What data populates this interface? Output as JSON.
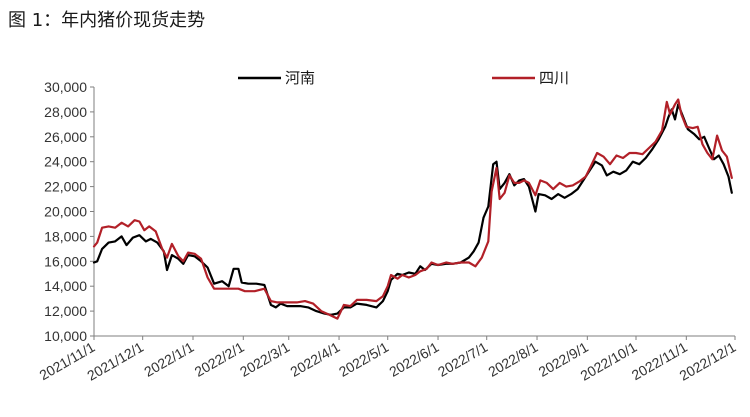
{
  "figure_title": "图 1：年内猪价现货走势",
  "chart_data": {
    "type": "line",
    "title": "图 1：年内猪价现货走势",
    "xlabel": "",
    "ylabel": "",
    "ylim": [
      10000,
      30000
    ],
    "yticks": [
      "10,000",
      "12,000",
      "14,000",
      "16,000",
      "18,000",
      "20,000",
      "22,000",
      "24,000",
      "26,000",
      "28,000",
      "30,000"
    ],
    "xlim": [
      "2021-11-01",
      "2022-12-01"
    ],
    "xticks": [
      "2021/11/1",
      "2021/12/1",
      "2022/1/1",
      "2022/2/1",
      "2022/3/1",
      "2022/4/1",
      "2022/5/1",
      "2022/6/1",
      "2022/7/1",
      "2022/8/1",
      "2022/9/1",
      "2022/10/1",
      "2022/11/1",
      "2022/12/1"
    ],
    "grid": false,
    "legend_position": "top",
    "series": [
      {
        "name": "河南",
        "color": "#000000",
        "points": [
          [
            "2021-11-01",
            15900
          ],
          [
            "2021-11-03",
            16000
          ],
          [
            "2021-11-06",
            17000
          ],
          [
            "2021-11-10",
            17500
          ],
          [
            "2021-11-14",
            17600
          ],
          [
            "2021-11-18",
            18000
          ],
          [
            "2021-11-21",
            17300
          ],
          [
            "2021-11-25",
            17900
          ],
          [
            "2021-11-29",
            18100
          ],
          [
            "2021-12-03",
            17600
          ],
          [
            "2021-12-06",
            17800
          ],
          [
            "2021-12-10",
            17500
          ],
          [
            "2021-12-14",
            16800
          ],
          [
            "2021-12-16",
            15300
          ],
          [
            "2021-12-19",
            16500
          ],
          [
            "2021-12-23",
            16200
          ],
          [
            "2021-12-26",
            15800
          ],
          [
            "2021-12-29",
            16500
          ],
          [
            "2022-01-02",
            16400
          ],
          [
            "2022-01-06",
            16000
          ],
          [
            "2022-01-10",
            15500
          ],
          [
            "2022-01-14",
            14200
          ],
          [
            "2022-01-19",
            14400
          ],
          [
            "2022-01-23",
            14000
          ],
          [
            "2022-01-26",
            15400
          ],
          [
            "2022-01-29",
            15400
          ],
          [
            "2022-01-31",
            14300
          ],
          [
            "2022-02-04",
            14200
          ],
          [
            "2022-02-09",
            14200
          ],
          [
            "2022-02-14",
            14100
          ],
          [
            "2022-02-18",
            12500
          ],
          [
            "2022-02-21",
            12300
          ],
          [
            "2022-02-24",
            12600
          ],
          [
            "2022-02-28",
            12400
          ],
          [
            "2022-03-04",
            12400
          ],
          [
            "2022-03-08",
            12400
          ],
          [
            "2022-03-13",
            12300
          ],
          [
            "2022-03-18",
            12000
          ],
          [
            "2022-03-23",
            11800
          ],
          [
            "2022-03-27",
            11700
          ],
          [
            "2022-03-31",
            11800
          ],
          [
            "2022-04-04",
            12300
          ],
          [
            "2022-04-08",
            12300
          ],
          [
            "2022-04-12",
            12600
          ],
          [
            "2022-04-18",
            12500
          ],
          [
            "2022-04-24",
            12300
          ],
          [
            "2022-04-28",
            12800
          ],
          [
            "2022-05-01",
            13600
          ],
          [
            "2022-05-03",
            14500
          ],
          [
            "2022-05-07",
            15000
          ],
          [
            "2022-05-10",
            14900
          ],
          [
            "2022-05-14",
            15100
          ],
          [
            "2022-05-18",
            15000
          ],
          [
            "2022-05-21",
            15600
          ],
          [
            "2022-05-24",
            15300
          ],
          [
            "2022-05-28",
            15800
          ],
          [
            "2022-06-01",
            15700
          ],
          [
            "2022-06-06",
            15800
          ],
          [
            "2022-06-10",
            15800
          ],
          [
            "2022-06-15",
            15900
          ],
          [
            "2022-06-20",
            16300
          ],
          [
            "2022-06-23",
            16800
          ],
          [
            "2022-06-26",
            17500
          ],
          [
            "2022-06-29",
            19500
          ],
          [
            "2022-07-02",
            20400
          ],
          [
            "2022-07-05",
            23800
          ],
          [
            "2022-07-07",
            24000
          ],
          [
            "2022-07-09",
            21800
          ],
          [
            "2022-07-12",
            22300
          ],
          [
            "2022-07-15",
            23000
          ],
          [
            "2022-07-18",
            22100
          ],
          [
            "2022-07-21",
            22500
          ],
          [
            "2022-07-24",
            22600
          ],
          [
            "2022-07-27",
            22000
          ],
          [
            "2022-07-31",
            20000
          ],
          [
            "2022-08-02",
            21400
          ],
          [
            "2022-08-06",
            21300
          ],
          [
            "2022-08-10",
            21000
          ],
          [
            "2022-08-14",
            21400
          ],
          [
            "2022-08-18",
            21100
          ],
          [
            "2022-08-22",
            21400
          ],
          [
            "2022-08-26",
            21800
          ],
          [
            "2022-08-30",
            22600
          ],
          [
            "2022-09-02",
            23200
          ],
          [
            "2022-09-06",
            24000
          ],
          [
            "2022-09-10",
            23700
          ],
          [
            "2022-09-13",
            22900
          ],
          [
            "2022-09-17",
            23200
          ],
          [
            "2022-09-21",
            23000
          ],
          [
            "2022-09-25",
            23300
          ],
          [
            "2022-09-29",
            24000
          ],
          [
            "2022-10-03",
            23800
          ],
          [
            "2022-10-07",
            24300
          ],
          [
            "2022-10-11",
            25000
          ],
          [
            "2022-10-15",
            25800
          ],
          [
            "2022-10-19",
            26800
          ],
          [
            "2022-10-21",
            27600
          ],
          [
            "2022-10-23",
            28200
          ],
          [
            "2022-10-25",
            27400
          ],
          [
            "2022-10-27",
            28600
          ],
          [
            "2022-10-30",
            27600
          ],
          [
            "2022-11-02",
            26600
          ],
          [
            "2022-11-06",
            26200
          ],
          [
            "2022-11-09",
            25800
          ],
          [
            "2022-11-12",
            26000
          ],
          [
            "2022-11-15",
            25100
          ],
          [
            "2022-11-18",
            24200
          ],
          [
            "2022-11-21",
            24500
          ],
          [
            "2022-11-24",
            23800
          ],
          [
            "2022-11-27",
            22800
          ],
          [
            "2022-11-29",
            21500
          ]
        ]
      },
      {
        "name": "四川",
        "color": "#b22028",
        "points": [
          [
            "2021-11-01",
            17200
          ],
          [
            "2021-11-03",
            17500
          ],
          [
            "2021-11-06",
            18700
          ],
          [
            "2021-11-10",
            18800
          ],
          [
            "2021-11-14",
            18700
          ],
          [
            "2021-11-18",
            19100
          ],
          [
            "2021-11-22",
            18800
          ],
          [
            "2021-11-26",
            19300
          ],
          [
            "2021-11-29",
            19200
          ],
          [
            "2021-12-02",
            18500
          ],
          [
            "2021-12-05",
            18800
          ],
          [
            "2021-12-09",
            18400
          ],
          [
            "2021-12-13",
            17000
          ],
          [
            "2021-12-16",
            16300
          ],
          [
            "2021-12-19",
            17400
          ],
          [
            "2021-12-23",
            16400
          ],
          [
            "2021-12-26",
            16000
          ],
          [
            "2021-12-29",
            16700
          ],
          [
            "2022-01-02",
            16600
          ],
          [
            "2022-01-06",
            16200
          ],
          [
            "2022-01-10",
            14700
          ],
          [
            "2022-01-14",
            13800
          ],
          [
            "2022-01-19",
            13800
          ],
          [
            "2022-01-24",
            13800
          ],
          [
            "2022-01-29",
            13800
          ],
          [
            "2022-02-02",
            13600
          ],
          [
            "2022-02-08",
            13600
          ],
          [
            "2022-02-14",
            13800
          ],
          [
            "2022-02-18",
            12800
          ],
          [
            "2022-02-22",
            12700
          ],
          [
            "2022-02-28",
            12700
          ],
          [
            "2022-03-06",
            12700
          ],
          [
            "2022-03-11",
            12800
          ],
          [
            "2022-03-16",
            12600
          ],
          [
            "2022-03-21",
            12000
          ],
          [
            "2022-03-26",
            11700
          ],
          [
            "2022-03-31",
            11400
          ],
          [
            "2022-04-04",
            12500
          ],
          [
            "2022-04-08",
            12400
          ],
          [
            "2022-04-12",
            12900
          ],
          [
            "2022-04-18",
            12900
          ],
          [
            "2022-04-24",
            12800
          ],
          [
            "2022-04-28",
            13200
          ],
          [
            "2022-05-01",
            14000
          ],
          [
            "2022-05-03",
            14900
          ],
          [
            "2022-05-07",
            14600
          ],
          [
            "2022-05-10",
            14900
          ],
          [
            "2022-05-14",
            14700
          ],
          [
            "2022-05-18",
            14900
          ],
          [
            "2022-05-21",
            15200
          ],
          [
            "2022-05-25",
            15400
          ],
          [
            "2022-05-28",
            15900
          ],
          [
            "2022-06-01",
            15700
          ],
          [
            "2022-06-06",
            15900
          ],
          [
            "2022-06-10",
            15800
          ],
          [
            "2022-06-15",
            15900
          ],
          [
            "2022-06-20",
            15900
          ],
          [
            "2022-06-24",
            15600
          ],
          [
            "2022-06-28",
            16300
          ],
          [
            "2022-07-02",
            17600
          ],
          [
            "2022-07-04",
            21600
          ],
          [
            "2022-07-07",
            23500
          ],
          [
            "2022-07-09",
            21000
          ],
          [
            "2022-07-12",
            21500
          ],
          [
            "2022-07-15",
            22900
          ],
          [
            "2022-07-18",
            22300
          ],
          [
            "2022-07-21",
            22300
          ],
          [
            "2022-07-24",
            22500
          ],
          [
            "2022-07-27",
            22300
          ],
          [
            "2022-07-31",
            21300
          ],
          [
            "2022-08-03",
            22500
          ],
          [
            "2022-08-07",
            22300
          ],
          [
            "2022-08-11",
            21800
          ],
          [
            "2022-08-15",
            22300
          ],
          [
            "2022-08-19",
            22000
          ],
          [
            "2022-08-23",
            22100
          ],
          [
            "2022-08-27",
            22400
          ],
          [
            "2022-08-31",
            22800
          ],
          [
            "2022-09-03",
            23600
          ],
          [
            "2022-09-07",
            24700
          ],
          [
            "2022-09-11",
            24400
          ],
          [
            "2022-09-15",
            23800
          ],
          [
            "2022-09-19",
            24500
          ],
          [
            "2022-09-23",
            24300
          ],
          [
            "2022-09-27",
            24700
          ],
          [
            "2022-10-01",
            24700
          ],
          [
            "2022-10-05",
            24600
          ],
          [
            "2022-10-09",
            25100
          ],
          [
            "2022-10-13",
            25600
          ],
          [
            "2022-10-17",
            26500
          ],
          [
            "2022-10-20",
            28800
          ],
          [
            "2022-10-22",
            27800
          ],
          [
            "2022-10-25",
            28600
          ],
          [
            "2022-10-27",
            29000
          ],
          [
            "2022-10-29",
            27800
          ],
          [
            "2022-11-01",
            26800
          ],
          [
            "2022-11-05",
            26700
          ],
          [
            "2022-11-08",
            26800
          ],
          [
            "2022-11-11",
            25400
          ],
          [
            "2022-11-14",
            24700
          ],
          [
            "2022-11-17",
            24200
          ],
          [
            "2022-11-20",
            26100
          ],
          [
            "2022-11-23",
            24900
          ],
          [
            "2022-11-26",
            24400
          ],
          [
            "2022-11-29",
            22700
          ]
        ]
      }
    ]
  }
}
